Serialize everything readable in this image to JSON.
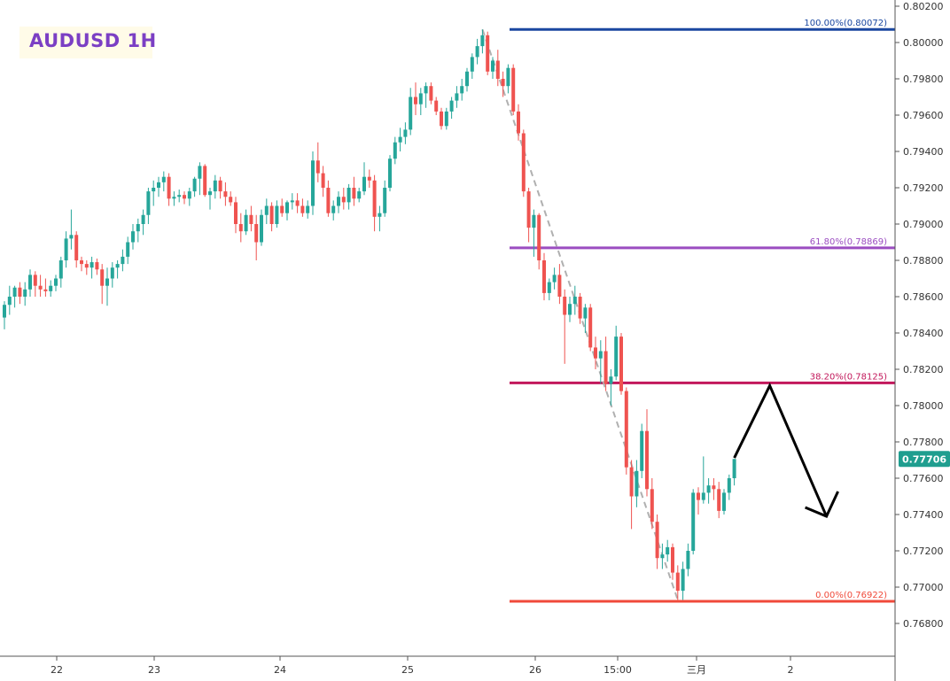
{
  "chart_data": {
    "type": "candlestick",
    "title": "AUDUSD 1H",
    "y_ticks": [
      "0.80200",
      "0.80000",
      "0.79800",
      "0.79600",
      "0.79400",
      "0.79200",
      "0.79000",
      "0.78800",
      "0.78600",
      "0.78400",
      "0.78200",
      "0.78000",
      "0.77800",
      "0.77600",
      "0.77400",
      "0.77200",
      "0.77000",
      "0.76800"
    ],
    "ylim": [
      0.7671,
      0.8021
    ],
    "x_ticks": [
      "22",
      "23",
      "24",
      "25",
      "26",
      "15:00",
      "三月",
      "2"
    ],
    "current_price": "0.77706",
    "fib_levels": [
      {
        "label": "100.00%(0.80072)",
        "value": 0.80072,
        "color": "#1a47a0"
      },
      {
        "label": "61.80%(0.78869)",
        "value": 0.78869,
        "color": "#9b4dc1"
      },
      {
        "label": "38.20%(0.78125)",
        "value": 0.78125,
        "color": "#c2185b"
      },
      {
        "label": "0.00%(0.76922)",
        "value": 0.76922,
        "color": "#f04a3a"
      }
    ],
    "colors": {
      "up": "#26a69a",
      "down": "#ef5350",
      "arrow": "#000000",
      "trend": "#b0b0b0",
      "price_tag": "#1f9e8f"
    },
    "candles": [
      [
        0.78485,
        0.78575,
        0.7842,
        0.78555
      ],
      [
        0.78555,
        0.7866,
        0.785,
        0.786
      ],
      [
        0.786,
        0.7866,
        0.7854,
        0.7865
      ],
      [
        0.7865,
        0.7868,
        0.7856,
        0.786
      ],
      [
        0.786,
        0.7868,
        0.7855,
        0.7864
      ],
      [
        0.7864,
        0.7875,
        0.786,
        0.7872
      ],
      [
        0.7872,
        0.7874,
        0.786,
        0.7866
      ],
      [
        0.7866,
        0.7872,
        0.786,
        0.7864
      ],
      [
        0.7864,
        0.787,
        0.786,
        0.7863
      ],
      [
        0.7863,
        0.7869,
        0.786,
        0.7866
      ],
      [
        0.7866,
        0.7872,
        0.7863,
        0.787
      ],
      [
        0.787,
        0.7882,
        0.7865,
        0.788
      ],
      [
        0.788,
        0.7896,
        0.7876,
        0.7892
      ],
      [
        0.7892,
        0.7908,
        0.7886,
        0.7894
      ],
      [
        0.7894,
        0.7896,
        0.7876,
        0.788
      ],
      [
        0.788,
        0.7882,
        0.7874,
        0.7878
      ],
      [
        0.7878,
        0.788,
        0.7872,
        0.7876
      ],
      [
        0.7876,
        0.7882,
        0.787,
        0.7879
      ],
      [
        0.7879,
        0.7881,
        0.7872,
        0.7875
      ],
      [
        0.7875,
        0.7878,
        0.7856,
        0.7866
      ],
      [
        0.7866,
        0.7876,
        0.7855,
        0.787
      ],
      [
        0.787,
        0.7879,
        0.7865,
        0.7876
      ],
      [
        0.7876,
        0.788,
        0.787,
        0.7878
      ],
      [
        0.7878,
        0.7886,
        0.7874,
        0.7882
      ],
      [
        0.7882,
        0.7893,
        0.7878,
        0.789
      ],
      [
        0.789,
        0.79,
        0.7886,
        0.7896
      ],
      [
        0.7896,
        0.7903,
        0.789,
        0.79
      ],
      [
        0.79,
        0.7908,
        0.7894,
        0.7905
      ],
      [
        0.7905,
        0.792,
        0.79,
        0.7918
      ],
      [
        0.7918,
        0.7924,
        0.791,
        0.792
      ],
      [
        0.792,
        0.7926,
        0.7915,
        0.7923
      ],
      [
        0.7923,
        0.7929,
        0.7918,
        0.7926
      ],
      [
        0.7926,
        0.7928,
        0.791,
        0.7914
      ],
      [
        0.7914,
        0.7918,
        0.791,
        0.7915
      ],
      [
        0.7915,
        0.7919,
        0.7912,
        0.7916
      ],
      [
        0.7916,
        0.7918,
        0.7911,
        0.7914
      ],
      [
        0.7914,
        0.792,
        0.791,
        0.7918
      ],
      [
        0.7918,
        0.7926,
        0.7915,
        0.7925
      ],
      [
        0.7925,
        0.7934,
        0.7916,
        0.7932
      ],
      [
        0.7932,
        0.7933,
        0.7915,
        0.7916
      ],
      [
        0.7916,
        0.792,
        0.7908,
        0.7918
      ],
      [
        0.7918,
        0.7927,
        0.7914,
        0.7924
      ],
      [
        0.7924,
        0.7926,
        0.7914,
        0.7918
      ],
      [
        0.7918,
        0.7923,
        0.791,
        0.7915
      ],
      [
        0.7915,
        0.7918,
        0.791,
        0.7912
      ],
      [
        0.7912,
        0.7915,
        0.7895,
        0.79
      ],
      [
        0.79,
        0.7906,
        0.789,
        0.7896
      ],
      [
        0.7896,
        0.7908,
        0.7894,
        0.7905
      ],
      [
        0.7905,
        0.791,
        0.7896,
        0.79
      ],
      [
        0.79,
        0.7905,
        0.788,
        0.789
      ],
      [
        0.789,
        0.7908,
        0.7888,
        0.7905
      ],
      [
        0.7905,
        0.7914,
        0.79,
        0.791
      ],
      [
        0.791,
        0.7912,
        0.7896,
        0.79
      ],
      [
        0.79,
        0.7913,
        0.7898,
        0.791
      ],
      [
        0.791,
        0.7914,
        0.7904,
        0.7906
      ],
      [
        0.7906,
        0.7913,
        0.7902,
        0.7912
      ],
      [
        0.7912,
        0.7917,
        0.7908,
        0.7913
      ],
      [
        0.7913,
        0.7917,
        0.7906,
        0.791
      ],
      [
        0.791,
        0.7914,
        0.7904,
        0.7906
      ],
      [
        0.7906,
        0.7913,
        0.7903,
        0.791
      ],
      [
        0.791,
        0.794,
        0.7905,
        0.7935
      ],
      [
        0.7935,
        0.7945,
        0.7923,
        0.7928
      ],
      [
        0.7928,
        0.7932,
        0.7915,
        0.792
      ],
      [
        0.792,
        0.7924,
        0.7904,
        0.7906
      ],
      [
        0.7906,
        0.7913,
        0.7902,
        0.791
      ],
      [
        0.791,
        0.7918,
        0.7906,
        0.7915
      ],
      [
        0.7915,
        0.792,
        0.7908,
        0.7912
      ],
      [
        0.7912,
        0.7922,
        0.7908,
        0.792
      ],
      [
        0.792,
        0.7926,
        0.791,
        0.7914
      ],
      [
        0.7914,
        0.792,
        0.7912,
        0.7918
      ],
      [
        0.7918,
        0.7934,
        0.7916,
        0.7926
      ],
      [
        0.7926,
        0.793,
        0.792,
        0.7924
      ],
      [
        0.7924,
        0.7927,
        0.7896,
        0.7904
      ],
      [
        0.7904,
        0.791,
        0.7896,
        0.7906
      ],
      [
        0.7906,
        0.7924,
        0.7904,
        0.792
      ],
      [
        0.792,
        0.7938,
        0.7918,
        0.7936
      ],
      [
        0.7936,
        0.7948,
        0.7933,
        0.7945
      ],
      [
        0.7945,
        0.7953,
        0.794,
        0.7948
      ],
      [
        0.7948,
        0.7956,
        0.7944,
        0.7952
      ],
      [
        0.7952,
        0.7975,
        0.7949,
        0.797
      ],
      [
        0.797,
        0.7978,
        0.796,
        0.7966
      ],
      [
        0.7966,
        0.7975,
        0.796,
        0.7972
      ],
      [
        0.7972,
        0.7978,
        0.7964,
        0.7976
      ],
      [
        0.7976,
        0.7978,
        0.7966,
        0.7968
      ],
      [
        0.7968,
        0.797,
        0.796,
        0.7962
      ],
      [
        0.7962,
        0.7964,
        0.7952,
        0.7954
      ],
      [
        0.7954,
        0.7964,
        0.7952,
        0.7962
      ],
      [
        0.7962,
        0.797,
        0.7958,
        0.7968
      ],
      [
        0.7968,
        0.7976,
        0.7964,
        0.7972
      ],
      [
        0.7972,
        0.798,
        0.7968,
        0.7976
      ],
      [
        0.7976,
        0.7986,
        0.7973,
        0.7984
      ],
      [
        0.7984,
        0.7994,
        0.798,
        0.7992
      ],
      [
        0.7992,
        0.8002,
        0.7988,
        0.7998
      ],
      [
        0.7998,
        0.80072,
        0.7994,
        0.8004
      ],
      [
        0.8004,
        0.8006,
        0.7982,
        0.7984
      ],
      [
        0.7984,
        0.7992,
        0.798,
        0.799
      ],
      [
        0.799,
        0.7996,
        0.7976,
        0.798
      ],
      [
        0.798,
        0.7984,
        0.797,
        0.7976
      ],
      [
        0.7976,
        0.7988,
        0.7972,
        0.7986
      ],
      [
        0.7986,
        0.7988,
        0.796,
        0.7962
      ],
      [
        0.7962,
        0.7966,
        0.7946,
        0.795
      ],
      [
        0.795,
        0.7952,
        0.7915,
        0.7918
      ],
      [
        0.7918,
        0.792,
        0.789,
        0.7898
      ],
      [
        0.7898,
        0.7908,
        0.7882,
        0.7905
      ],
      [
        0.7905,
        0.7906,
        0.7875,
        0.788
      ],
      [
        0.788,
        0.7884,
        0.7858,
        0.7862
      ],
      [
        0.7862,
        0.787,
        0.7858,
        0.7868
      ],
      [
        0.7868,
        0.7876,
        0.7864,
        0.7872
      ],
      [
        0.7872,
        0.7878,
        0.7856,
        0.786
      ],
      [
        0.786,
        0.7864,
        0.7823,
        0.785
      ],
      [
        0.785,
        0.786,
        0.7846,
        0.7856
      ],
      [
        0.7856,
        0.7866,
        0.785,
        0.786
      ],
      [
        0.786,
        0.7862,
        0.7845,
        0.7848
      ],
      [
        0.7848,
        0.7856,
        0.784,
        0.7854
      ],
      [
        0.7854,
        0.7856,
        0.783,
        0.7832
      ],
      [
        0.7832,
        0.7838,
        0.782,
        0.7826
      ],
      [
        0.7826,
        0.7836,
        0.7812,
        0.783
      ],
      [
        0.783,
        0.7838,
        0.7808,
        0.7812
      ],
      [
        0.7812,
        0.782,
        0.78,
        0.7816
      ],
      [
        0.7816,
        0.7844,
        0.7814,
        0.7838
      ],
      [
        0.7838,
        0.784,
        0.7806,
        0.7808
      ],
      [
        0.7808,
        0.781,
        0.7762,
        0.7766
      ],
      [
        0.7766,
        0.777,
        0.7732,
        0.775
      ],
      [
        0.775,
        0.777,
        0.7744,
        0.7764
      ],
      [
        0.7764,
        0.779,
        0.776,
        0.7786
      ],
      [
        0.7786,
        0.7798,
        0.775,
        0.7754
      ],
      [
        0.7754,
        0.776,
        0.7732,
        0.7736
      ],
      [
        0.7736,
        0.774,
        0.771,
        0.7716
      ],
      [
        0.7716,
        0.7724,
        0.771,
        0.7718
      ],
      [
        0.7718,
        0.7726,
        0.7714,
        0.7722
      ],
      [
        0.7722,
        0.7724,
        0.7704,
        0.7708
      ],
      [
        0.7708,
        0.7712,
        0.7693,
        0.7698
      ],
      [
        0.7698,
        0.7714,
        0.7693,
        0.771
      ],
      [
        0.771,
        0.7724,
        0.7706,
        0.772
      ],
      [
        0.772,
        0.7754,
        0.7718,
        0.7752
      ],
      [
        0.7752,
        0.7755,
        0.774,
        0.7748
      ],
      [
        0.7748,
        0.7772,
        0.7746,
        0.7752
      ],
      [
        0.7752,
        0.776,
        0.7746,
        0.7756
      ],
      [
        0.7756,
        0.776,
        0.7748,
        0.7754
      ],
      [
        0.7754,
        0.7758,
        0.7738,
        0.7742
      ],
      [
        0.7742,
        0.7754,
        0.774,
        0.7752
      ],
      [
        0.7752,
        0.7762,
        0.7748,
        0.776
      ],
      [
        0.776,
        0.77706,
        0.7756,
        0.77706
      ]
    ]
  }
}
